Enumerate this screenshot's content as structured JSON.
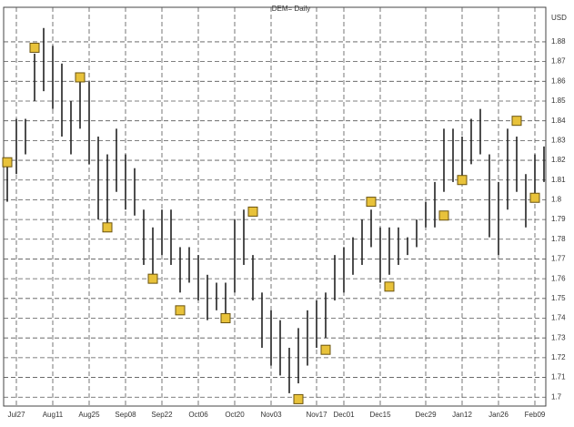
{
  "chart_data": {
    "type": "hilo",
    "title": "DEM= Daily",
    "y_label": "USD",
    "categories": [
      null,
      "Jul27",
      null,
      null,
      null,
      "Aug11",
      null,
      null,
      null,
      "Aug25",
      null,
      null,
      null,
      "Sep08",
      null,
      null,
      null,
      "Sep22",
      null,
      null,
      null,
      "Oct06",
      null,
      null,
      null,
      "Oct20",
      null,
      null,
      null,
      "Nov03",
      null,
      null,
      null,
      null,
      "Nov17",
      null,
      null,
      "Dec01",
      null,
      null,
      null,
      "Dec15",
      null,
      null,
      null,
      null,
      "Dec29",
      null,
      null,
      null,
      "Jan12",
      null,
      null,
      null,
      "Jan26",
      null,
      null,
      null,
      "Feb09",
      null
    ],
    "highs": [
      1.818,
      1.841,
      1.841,
      1.874,
      1.887,
      1.878,
      1.869,
      1.85,
      1.864,
      1.86,
      1.832,
      1.823,
      1.836,
      1.823,
      1.816,
      1.795,
      1.786,
      1.795,
      1.795,
      1.776,
      1.776,
      1.772,
      1.762,
      1.758,
      1.758,
      1.79,
      1.795,
      1.772,
      1.753,
      1.744,
      1.739,
      1.725,
      1.735,
      1.744,
      1.749,
      1.753,
      1.772,
      1.776,
      1.781,
      1.79,
      1.795,
      1.786,
      1.786,
      1.786,
      1.781,
      1.79,
      1.799,
      1.809,
      1.836,
      1.836,
      1.832,
      1.841,
      1.846,
      1.823,
      1.809,
      1.836,
      1.832,
      1.813,
      1.823,
      1.827
    ],
    "lows": [
      1.799,
      1.813,
      1.823,
      1.85,
      1.855,
      1.846,
      1.832,
      1.823,
      1.836,
      1.818,
      1.79,
      1.786,
      1.804,
      1.795,
      1.792,
      1.767,
      1.758,
      1.772,
      1.767,
      1.753,
      1.758,
      1.749,
      1.739,
      1.744,
      1.739,
      1.753,
      1.767,
      1.749,
      1.725,
      1.716,
      1.711,
      1.702,
      1.707,
      1.716,
      1.725,
      1.73,
      1.749,
      1.753,
      1.762,
      1.767,
      1.776,
      1.758,
      1.762,
      1.767,
      1.772,
      1.776,
      1.786,
      1.786,
      1.804,
      1.809,
      1.809,
      1.818,
      1.823,
      1.781,
      1.772,
      1.795,
      1.804,
      1.786,
      1.799,
      1.809
    ],
    "markers": [
      {
        "x": 0,
        "y": 1.819
      },
      {
        "x": 3,
        "y": 1.877
      },
      {
        "x": 8,
        "y": 1.862
      },
      {
        "x": 11,
        "y": 1.786
      },
      {
        "x": 16,
        "y": 1.76
      },
      {
        "x": 19,
        "y": 1.744
      },
      {
        "x": 24,
        "y": 1.74
      },
      {
        "x": 27,
        "y": 1.794
      },
      {
        "x": 32,
        "y": 1.699
      },
      {
        "x": 35,
        "y": 1.724
      },
      {
        "x": 40,
        "y": 1.799
      },
      {
        "x": 42,
        "y": 1.756
      },
      {
        "x": 48,
        "y": 1.792
      },
      {
        "x": 50,
        "y": 1.81
      },
      {
        "x": 56,
        "y": 1.84
      },
      {
        "x": 58,
        "y": 1.801
      }
    ],
    "color": "#222222",
    "marker_color": "#e8c23a",
    "ylim": [
      1.6955,
      1.8975
    ],
    "yticks": [
      1.7,
      1.71,
      1.72,
      1.73,
      1.74,
      1.75,
      1.76,
      1.77,
      1.78,
      1.79,
      1.8,
      1.81,
      1.82,
      1.83,
      1.84,
      1.85,
      1.86,
      1.87,
      1.88
    ],
    "grid": true
  }
}
